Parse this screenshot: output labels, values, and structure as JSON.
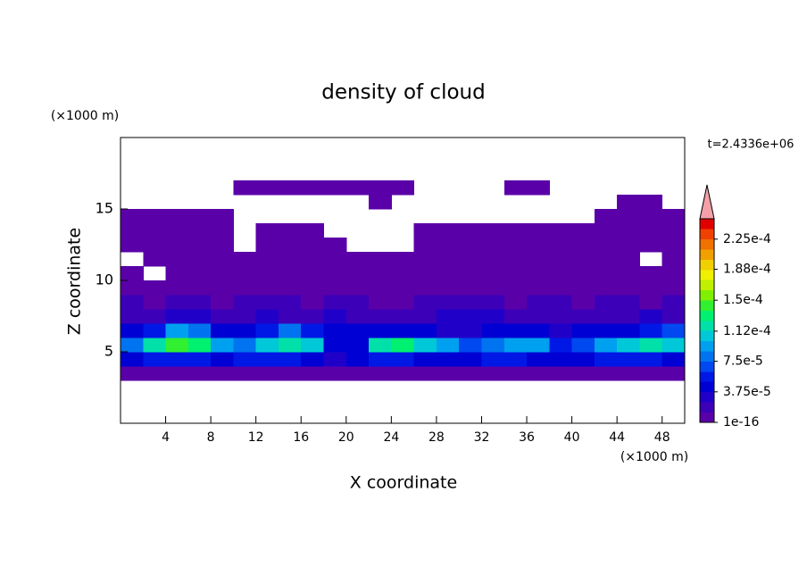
{
  "chart_data": {
    "type": "contour",
    "title": "density of cloud",
    "xlabel": "X coordinate",
    "ylabel": "Z coordinate",
    "xunit": "(×1000 m)",
    "yunit": "(×1000 m)",
    "annotation": "t=2.4336e+06",
    "xlim": [
      0,
      50
    ],
    "ylim": [
      0,
      20
    ],
    "xticks": [
      4,
      8,
      12,
      16,
      20,
      24,
      28,
      32,
      36,
      40,
      44,
      48
    ],
    "yticks": [
      5,
      10,
      15
    ],
    "x": [
      1,
      3,
      5,
      7,
      9,
      11,
      13,
      15,
      17,
      19,
      21,
      23,
      25,
      27,
      29,
      31,
      33,
      35,
      37,
      39,
      41,
      43,
      45,
      47,
      49
    ],
    "y": [
      0.5,
      1.5,
      2.5,
      3.5,
      4.5,
      5.5,
      6.5,
      7.5,
      8.5,
      9.5,
      10.5,
      11.5,
      12.5,
      13.5,
      14.5,
      15.5,
      16.5,
      17.5,
      18.5,
      19.5
    ],
    "z": [
      [
        null,
        null,
        null,
        null,
        null,
        null,
        null,
        null,
        null,
        null,
        null,
        null,
        null,
        null,
        null,
        null,
        null,
        null,
        null,
        null,
        null,
        null,
        null,
        null,
        null
      ],
      [
        null,
        null,
        null,
        null,
        null,
        null,
        null,
        null,
        null,
        null,
        null,
        null,
        null,
        null,
        null,
        null,
        null,
        null,
        null,
        null,
        null,
        null,
        null,
        null,
        null
      ],
      [
        null,
        null,
        null,
        null,
        null,
        null,
        null,
        null,
        null,
        null,
        null,
        null,
        null,
        null,
        null,
        null,
        null,
        null,
        null,
        null,
        null,
        null,
        null,
        null,
        null
      ],
      [
        5e-06,
        5e-06,
        5e-06,
        5e-06,
        5e-06,
        5e-06,
        5e-06,
        5e-06,
        5e-06,
        5e-06,
        5e-06,
        5e-06,
        5e-06,
        5e-06,
        5e-06,
        5e-06,
        5e-06,
        5e-06,
        5e-06,
        5e-06,
        5e-06,
        5e-06,
        5e-06,
        5e-06,
        5e-06
      ],
      [
        5e-05,
        6e-05,
        6e-05,
        6e-05,
        5e-05,
        6e-05,
        6e-05,
        6e-05,
        5e-05,
        3e-05,
        4e-05,
        6e-05,
        6e-05,
        5e-05,
        5e-05,
        4e-05,
        6e-05,
        6e-05,
        5e-05,
        4e-05,
        5e-05,
        6e-05,
        6e-05,
        6e-05,
        5e-05
      ],
      [
        8e-05,
        0.00012,
        0.00014,
        0.00013,
        9e-05,
        8e-05,
        0.00011,
        0.00012,
        0.00011,
        5e-05,
        4e-05,
        0.00012,
        0.00013,
        0.00011,
        9e-05,
        7e-05,
        8e-05,
        0.0001,
        9e-05,
        6e-05,
        7e-05,
        9e-05,
        0.00011,
        0.00012,
        0.00011
      ],
      [
        4e-05,
        6e-05,
        9e-05,
        8e-05,
        5e-05,
        4e-05,
        6e-05,
        8e-05,
        6e-05,
        4e-05,
        4e-05,
        5e-05,
        4e-05,
        4e-05,
        3e-05,
        3e-05,
        4e-05,
        5e-05,
        4e-05,
        3e-05,
        4e-05,
        4e-05,
        5e-05,
        6e-05,
        7e-05
      ],
      [
        2e-05,
        2e-05,
        3e-05,
        3e-05,
        2e-05,
        2e-05,
        3e-05,
        2e-05,
        2e-05,
        3e-05,
        2e-05,
        2e-05,
        2e-05,
        2e-05,
        3e-05,
        3e-05,
        3e-05,
        2e-05,
        2e-05,
        2e-05,
        2e-05,
        2e-05,
        2e-05,
        3e-05,
        2e-05
      ],
      [
        1.5e-05,
        1e-05,
        1.5e-05,
        1.5e-05,
        1e-05,
        1.5e-05,
        1.5e-05,
        1.5e-05,
        1e-05,
        1.5e-05,
        1.5e-05,
        1e-05,
        1e-05,
        1.5e-05,
        1.5e-05,
        1.5e-05,
        1.5e-05,
        1e-05,
        1.5e-05,
        1.5e-05,
        1e-05,
        1.5e-05,
        1.5e-05,
        1e-05,
        1.5e-05
      ],
      [
        1e-05,
        5e-06,
        1e-05,
        5e-06,
        5e-06,
        1e-05,
        5e-06,
        1e-05,
        5e-06,
        5e-06,
        1e-05,
        5e-06,
        5e-06,
        1e-05,
        5e-06,
        5e-06,
        1e-05,
        5e-06,
        5e-06,
        5e-06,
        1e-05,
        5e-06,
        5e-06,
        1e-05,
        5e-06
      ],
      [
        5e-06,
        null,
        5e-06,
        5e-06,
        5e-06,
        5e-06,
        5e-06,
        5e-06,
        5e-06,
        5e-06,
        5e-06,
        5e-06,
        5e-06,
        5e-06,
        5e-06,
        5e-06,
        5e-06,
        5e-06,
        5e-06,
        5e-06,
        5e-06,
        5e-06,
        5e-06,
        5e-06,
        5e-06
      ],
      [
        null,
        5e-06,
        5e-06,
        5e-06,
        5e-06,
        5e-06,
        5e-06,
        5e-06,
        5e-06,
        5e-06,
        5e-06,
        5e-06,
        5e-06,
        5e-06,
        5e-06,
        5e-06,
        5e-06,
        5e-06,
        5e-06,
        5e-06,
        5e-06,
        5e-06,
        5e-06,
        null,
        5e-06
      ],
      [
        5e-06,
        5e-06,
        5e-06,
        5e-06,
        5e-06,
        null,
        5e-06,
        5e-06,
        5e-06,
        5e-06,
        null,
        null,
        null,
        5e-06,
        5e-06,
        5e-06,
        5e-06,
        5e-06,
        5e-06,
        5e-06,
        5e-06,
        5e-06,
        5e-06,
        5e-06,
        5e-06
      ],
      [
        5e-06,
        5e-06,
        5e-06,
        5e-06,
        5e-06,
        null,
        5e-06,
        5e-06,
        5e-06,
        null,
        null,
        null,
        null,
        5e-06,
        5e-06,
        5e-06,
        5e-06,
        5e-06,
        5e-06,
        5e-06,
        5e-06,
        5e-06,
        5e-06,
        5e-06,
        5e-06
      ],
      [
        5e-06,
        5e-06,
        5e-06,
        5e-06,
        5e-06,
        null,
        null,
        null,
        null,
        null,
        null,
        null,
        null,
        null,
        null,
        null,
        null,
        null,
        null,
        null,
        null,
        5e-06,
        5e-06,
        5e-06,
        5e-06
      ],
      [
        null,
        null,
        null,
        null,
        null,
        null,
        null,
        null,
        null,
        null,
        null,
        5e-06,
        null,
        null,
        null,
        null,
        null,
        null,
        null,
        null,
        null,
        null,
        5e-06,
        5e-06,
        null
      ],
      [
        null,
        null,
        null,
        null,
        null,
        5e-06,
        5e-06,
        5e-06,
        5e-06,
        5e-06,
        5e-06,
        5e-06,
        5e-06,
        null,
        null,
        null,
        null,
        5e-06,
        5e-06,
        null,
        null,
        null,
        null,
        null,
        null
      ],
      [
        null,
        null,
        null,
        null,
        null,
        null,
        null,
        null,
        null,
        null,
        null,
        null,
        null,
        null,
        null,
        null,
        null,
        null,
        null,
        null,
        null,
        null,
        null,
        null,
        null
      ],
      [
        null,
        null,
        null,
        null,
        null,
        null,
        null,
        null,
        null,
        null,
        null,
        null,
        null,
        null,
        null,
        null,
        null,
        null,
        null,
        null,
        null,
        null,
        null,
        null,
        null
      ],
      [
        null,
        null,
        null,
        null,
        null,
        null,
        null,
        null,
        null,
        null,
        null,
        null,
        null,
        null,
        null,
        null,
        null,
        null,
        null,
        null,
        null,
        null,
        null,
        null,
        null
      ]
    ],
    "colorbar": {
      "zlim": [
        1e-16,
        0.00025
      ],
      "ticks": [
        1e-16,
        {
          "value": 3.75e-05,
          "label": "3.75e-5"
        },
        {
          "value": 7.5e-05,
          "label": "7.5e-5"
        },
        {
          "value": 0.000112,
          "label": "1.12e-4"
        },
        {
          "value": 0.00015,
          "label": "1.5e-4"
        },
        {
          "value": 0.000188,
          "label": "1.88e-4"
        },
        {
          "value": 0.000225,
          "label": "2.25e-4"
        }
      ],
      "colors": [
        "#5a00a8",
        "#3c00b8",
        "#2000c8",
        "#0000d4",
        "#0018e6",
        "#0048f0",
        "#0074f0",
        "#00a0f0",
        "#00c8d8",
        "#00e0a8",
        "#00f070",
        "#30f030",
        "#80f000",
        "#c0f000",
        "#f0f000",
        "#f0d000",
        "#f0a000",
        "#f07000",
        "#f04000",
        "#e00000"
      ],
      "over_color": "#f4a0a8"
    }
  }
}
